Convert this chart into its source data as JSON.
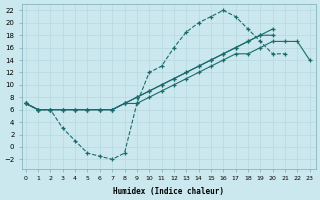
{
  "xlabel": "Humidex (Indice chaleur)",
  "xlim": [
    -0.3,
    23.5
  ],
  "ylim": [
    -3.5,
    23
  ],
  "xticks": [
    0,
    1,
    2,
    3,
    4,
    5,
    6,
    7,
    8,
    9,
    10,
    11,
    12,
    13,
    14,
    15,
    16,
    17,
    18,
    19,
    20,
    21,
    22,
    23
  ],
  "yticks": [
    -2,
    0,
    2,
    4,
    6,
    8,
    10,
    12,
    14,
    16,
    18,
    20,
    22
  ],
  "bg_color": "#cce8ef",
  "line_color": "#1a6b6b",
  "grid_color": "#b8d8df",
  "series": [
    {
      "name": "dip_curve",
      "x": [
        0,
        1,
        2,
        3,
        4,
        5,
        6,
        7,
        8,
        9,
        10,
        11,
        12,
        13,
        14,
        15,
        16,
        17,
        18,
        19,
        20,
        21
      ],
      "y": [
        7,
        6,
        6,
        3,
        1,
        -1,
        -1.5,
        -2,
        -1,
        7,
        12,
        13,
        16,
        18.5,
        20,
        21,
        22,
        21,
        19,
        17,
        15,
        15
      ],
      "style": "--"
    },
    {
      "name": "line_upper",
      "x": [
        0,
        1,
        2,
        3,
        4,
        5,
        6,
        7,
        8,
        9,
        10,
        11,
        12,
        13,
        14,
        15,
        16,
        17,
        18,
        19,
        20
      ],
      "y": [
        7,
        6,
        6,
        6,
        6,
        6,
        6,
        6,
        7,
        8,
        9,
        10,
        11,
        12,
        13,
        14,
        15,
        16,
        17,
        18,
        19
      ],
      "style": "-"
    },
    {
      "name": "line_mid",
      "x": [
        0,
        1,
        2,
        3,
        4,
        5,
        6,
        7,
        8,
        9,
        10,
        11,
        12,
        13,
        14,
        15,
        16,
        17,
        18,
        19,
        20
      ],
      "y": [
        7,
        6,
        6,
        6,
        6,
        6,
        6,
        6,
        7,
        8,
        9,
        10,
        11,
        12,
        13,
        14,
        15,
        16,
        17,
        18,
        18
      ],
      "style": "-"
    },
    {
      "name": "line_lower",
      "x": [
        0,
        1,
        2,
        3,
        4,
        5,
        6,
        7,
        8,
        9,
        10,
        11,
        12,
        13,
        14,
        15,
        16,
        17,
        18,
        19,
        20,
        21,
        22,
        23
      ],
      "y": [
        7,
        6,
        6,
        6,
        6,
        6,
        6,
        6,
        7,
        7,
        8,
        9,
        10,
        11,
        12,
        13,
        14,
        15,
        15,
        16,
        17,
        17,
        17,
        14
      ],
      "style": "-"
    }
  ]
}
